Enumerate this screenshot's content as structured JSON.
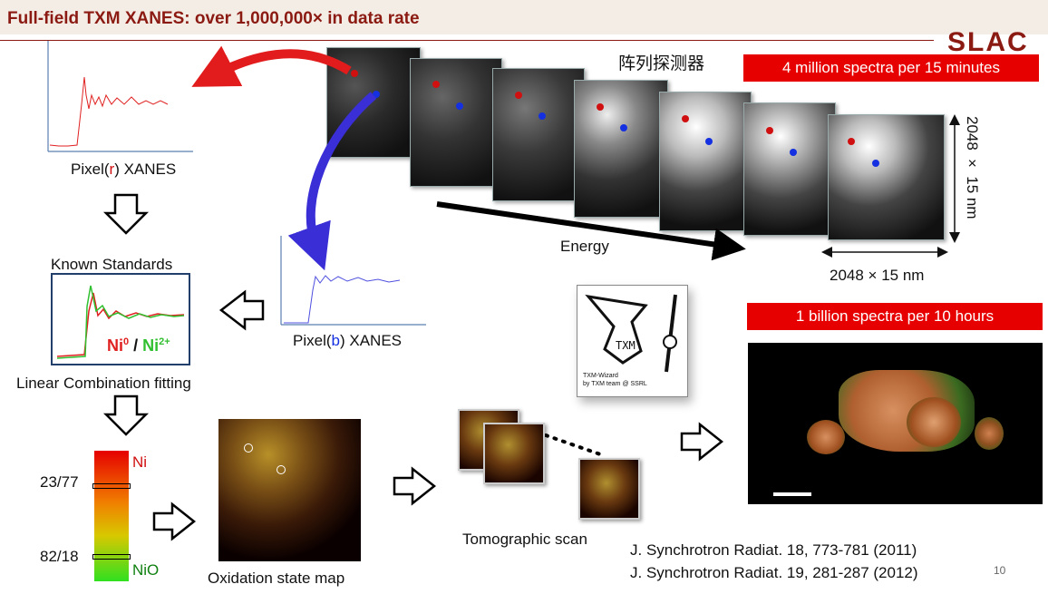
{
  "title": "Full-field TXM XANES: over 1,000,000× in data rate",
  "logo": "SLAC",
  "detector_label": "阵列探测器",
  "banner_top": "4 million spectra per 15 minutes",
  "banner_mid": "1 billion spectra per 10 hours",
  "side_dim": "2048 × 15 nm",
  "bottom_dim": "2048 × 15 nm",
  "energy_label": "Energy",
  "pixel_r": {
    "prefix": "Pixel(",
    "letter": "r",
    "suffix": ") XANES"
  },
  "pixel_b": {
    "prefix": "Pixel(",
    "letter": "b",
    "suffix": ") XANES"
  },
  "known_standards": "Known Standards",
  "ni0": "Ni",
  "ni0_sup": "0",
  "slash": " / ",
  "ni2": "Ni",
  "ni2_sup": "2+",
  "lcf": "Linear Combination fitting",
  "scale": {
    "top": "Ni",
    "bottom": "NiO",
    "mark1": "23/77",
    "mark2": "82/18"
  },
  "oxidation_map": "Oxidation state map",
  "tomo_scan": "Tomographic scan",
  "wizard": {
    "line1": "TXM-Wizard",
    "line2": "by TXM team @ SSRL"
  },
  "refs": [
    "J. Synchrotron Radiat. 18, 773-781 (2011)",
    "J. Synchrotron Radiat. 19, 281-287 (2012)"
  ],
  "page_number": "10",
  "colors": {
    "accent": "#8b1a12",
    "banner": "#e60000",
    "red_dot": "#d01010",
    "blue_dot": "#1530e0"
  }
}
